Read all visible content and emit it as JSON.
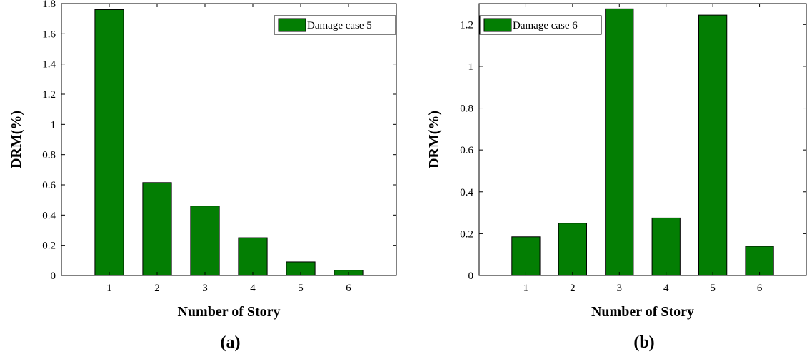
{
  "colors": {
    "bar": "#037e03",
    "bar_edge": "#000000"
  },
  "chart_data": [
    {
      "type": "bar",
      "panel_label": "(a)",
      "xlabel": "Number of Story",
      "ylabel": "DRM(%)",
      "categories": [
        "1",
        "2",
        "3",
        "4",
        "5",
        "6"
      ],
      "series": [
        {
          "name": "Damage case 5",
          "values": [
            1.76,
            0.615,
            0.46,
            0.25,
            0.09,
            0.035
          ]
        }
      ],
      "xlim": [
        0,
        7
      ],
      "ylim": [
        0,
        1.8
      ],
      "yticks": [
        0,
        0.2,
        0.4,
        0.6,
        0.8,
        1,
        1.2,
        1.4,
        1.6,
        1.8
      ],
      "ytick_labels": [
        "0",
        "0.2",
        "0.4",
        "0.6",
        "0.8",
        "1",
        "1.2",
        "1.4",
        "1.6",
        "1.8"
      ],
      "legend_position": "top-right",
      "grid": false
    },
    {
      "type": "bar",
      "panel_label": "(b)",
      "xlabel": "Number of Story",
      "ylabel": "DRM(%)",
      "categories": [
        "1",
        "2",
        "3",
        "4",
        "5",
        "6"
      ],
      "series": [
        {
          "name": "Damage case 6",
          "values": [
            0.185,
            0.25,
            1.275,
            0.275,
            1.245,
            0.14
          ]
        }
      ],
      "xlim": [
        0,
        7
      ],
      "ylim": [
        0,
        1.3
      ],
      "yticks": [
        0,
        0.2,
        0.4,
        0.6,
        0.8,
        1,
        1.2
      ],
      "ytick_labels": [
        "0",
        "0.2",
        "0.4",
        "0.6",
        "0.8",
        "1",
        "1.2"
      ],
      "legend_position": "top-left",
      "grid": false
    }
  ]
}
